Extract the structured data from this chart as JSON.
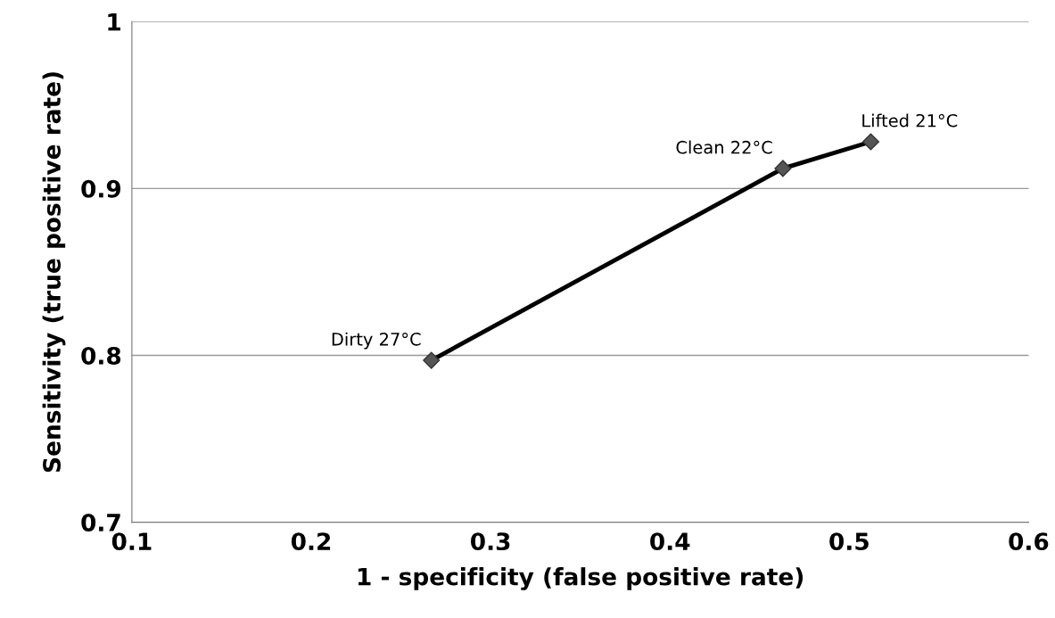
{
  "chart_data": {
    "type": "line",
    "xlabel": "1 - specificity (false positive rate)",
    "ylabel": "Sensitivity (true positive rate)",
    "x": [
      0.267,
      0.463,
      0.512
    ],
    "series": [
      {
        "color": "#000000",
        "values": [
          0.797,
          0.912,
          0.928
        ]
      }
    ],
    "marker": "diamond",
    "line_style": "solid",
    "grid": "y",
    "xlim": [
      0.1,
      0.6
    ],
    "xticks": [
      0.1,
      0.2,
      0.3,
      0.4,
      0.5,
      0.6
    ],
    "ylim": [
      0.7,
      1
    ],
    "yticks": [
      0.7,
      0.8,
      0.9,
      1
    ],
    "annotations": [
      {
        "text": "Dirty 27°C",
        "x": 0.267,
        "y": 0.797
      },
      {
        "text": "Clean 22°C",
        "x": 0.463,
        "y": 0.912
      },
      {
        "text": "Lifted 21°C",
        "x": 0.512,
        "y": 0.928
      }
    ]
  }
}
